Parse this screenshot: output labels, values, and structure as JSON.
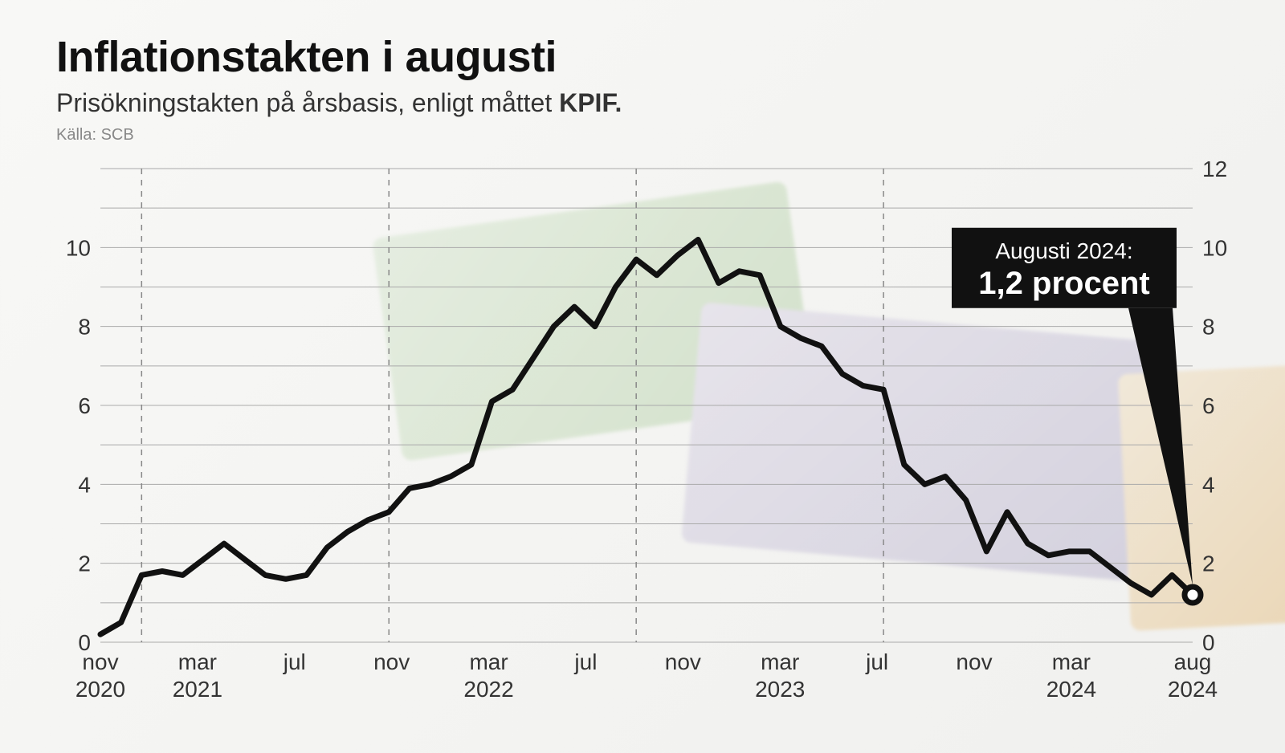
{
  "header": {
    "title": "Inflationstakten i augusti",
    "subtitle_lead": "Prisökningstakten på årsbasis, enligt måttet ",
    "subtitle_bold": "KPIF.",
    "source": "Källa: SCB"
  },
  "chart": {
    "type": "line",
    "background_color": "transparent",
    "y_axis": {
      "min": 0,
      "max": 12,
      "ticks_left": [
        0,
        2,
        4,
        6,
        8,
        10
      ],
      "ticks_right": [
        0,
        2,
        4,
        6,
        8,
        10,
        12
      ],
      "grid_step": 1,
      "grid_color": "#aaaaaa",
      "grid_width": 1,
      "label_fontsize": 28,
      "label_color": "#333333"
    },
    "x_axis": {
      "ticks": [
        {
          "month": "nov",
          "year": "2020",
          "index": 0
        },
        {
          "month": "mar",
          "year": "2021",
          "index": 4
        },
        {
          "month": "jul",
          "year": "",
          "index": 8
        },
        {
          "month": "nov",
          "year": "",
          "index": 12
        },
        {
          "month": "mar",
          "year": "2022",
          "index": 16
        },
        {
          "month": "jul",
          "year": "",
          "index": 20
        },
        {
          "month": "nov",
          "year": "",
          "index": 24
        },
        {
          "month": "mar",
          "year": "2023",
          "index": 28
        },
        {
          "month": "jul",
          "year": "",
          "index": 32
        },
        {
          "month": "nov",
          "year": "",
          "index": 36
        },
        {
          "month": "mar",
          "year": "2024",
          "index": 40
        },
        {
          "month": "aug",
          "year": "2024",
          "index": 45
        }
      ],
      "year_dividers": [
        1,
        13,
        25,
        37
      ],
      "divider_color": "#888888",
      "divider_dash": "7,7",
      "label_fontsize": 28,
      "label_color": "#333333"
    },
    "series": {
      "color": "#111111",
      "width": 7,
      "values": [
        0.2,
        0.5,
        1.7,
        1.8,
        1.7,
        2.1,
        2.5,
        2.1,
        1.7,
        1.6,
        1.7,
        2.4,
        2.8,
        3.1,
        3.3,
        3.9,
        4.0,
        4.2,
        4.5,
        6.1,
        6.4,
        7.2,
        8.0,
        8.5,
        8.0,
        9.0,
        9.7,
        9.3,
        9.8,
        10.2,
        9.1,
        9.4,
        9.3,
        8.0,
        7.7,
        7.5,
        6.8,
        6.5,
        6.4,
        4.5,
        4.0,
        4.2,
        3.6,
        2.3,
        3.3,
        2.5,
        2.2,
        2.3,
        2.3,
        1.9,
        1.5,
        1.2,
        1.7,
        1.2
      ],
      "end_marker": {
        "radius": 10,
        "fill": "#ffffff",
        "stroke": "#111111",
        "stroke_width": 7
      }
    },
    "callout": {
      "line1": "Augusti 2024:",
      "line2": "1,2 procent",
      "box_fill": "#111111",
      "text_color": "#ffffff",
      "line1_fontsize": 28,
      "line2_fontsize": 40
    }
  }
}
